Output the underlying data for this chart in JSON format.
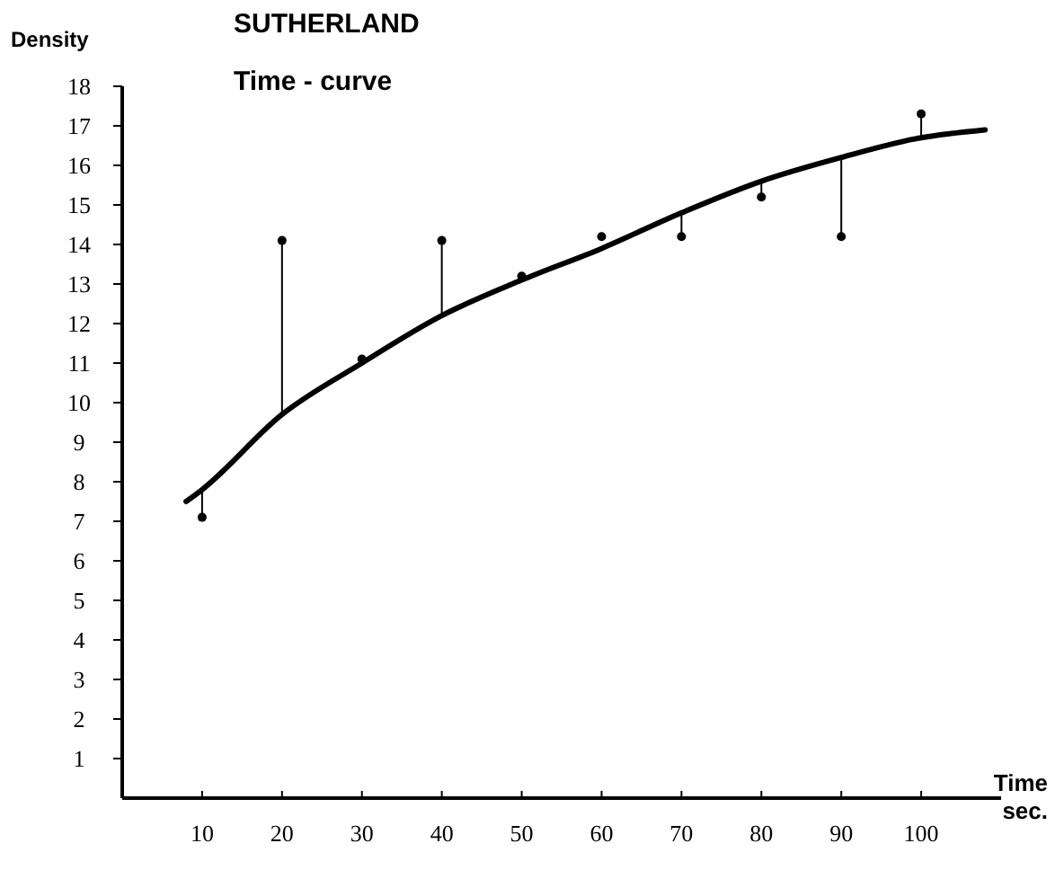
{
  "chart_data": {
    "type": "scatter",
    "title": "SUTHERLAND",
    "subtitle": "Time - curve",
    "xlabel": "Time sec.",
    "ylabel": "Density",
    "xlim": [
      0,
      110
    ],
    "xticks": [
      10,
      20,
      30,
      40,
      50,
      60,
      70,
      80,
      90,
      100
    ],
    "ylim": [
      0,
      18
    ],
    "yticks": [
      1,
      2,
      3,
      4,
      5,
      6,
      7,
      8,
      9,
      10,
      11,
      12,
      13,
      14,
      15,
      16,
      17,
      18
    ],
    "grid": false,
    "series": [
      {
        "color": "#000000",
        "marker": "circle",
        "x": [
          10,
          20,
          30,
          40,
          50,
          60,
          70,
          80,
          90,
          100
        ],
        "values": [
          7.1,
          14.1,
          11.1,
          14.1,
          13.2,
          14.2,
          14.2,
          15.2,
          14.2,
          17.3
        ],
        "errors": [
          [
            7.1,
            7.8
          ],
          [
            9.7,
            14.1
          ],
          null,
          [
            12.2,
            14.1
          ],
          null,
          null,
          [
            14.2,
            14.8
          ],
          [
            15.2,
            15.6
          ],
          [
            14.2,
            16.2
          ],
          [
            16.7,
            17.3
          ]
        ]
      },
      {
        "type": "line",
        "color": "#000000",
        "line_style": "solid",
        "x": [
          8,
          10,
          20,
          30,
          40,
          50,
          60,
          70,
          80,
          90,
          100,
          108
        ],
        "values": [
          7.5,
          7.8,
          9.7,
          11.0,
          12.2,
          13.1,
          13.9,
          14.8,
          15.6,
          16.2,
          16.7,
          16.9
        ]
      }
    ]
  }
}
